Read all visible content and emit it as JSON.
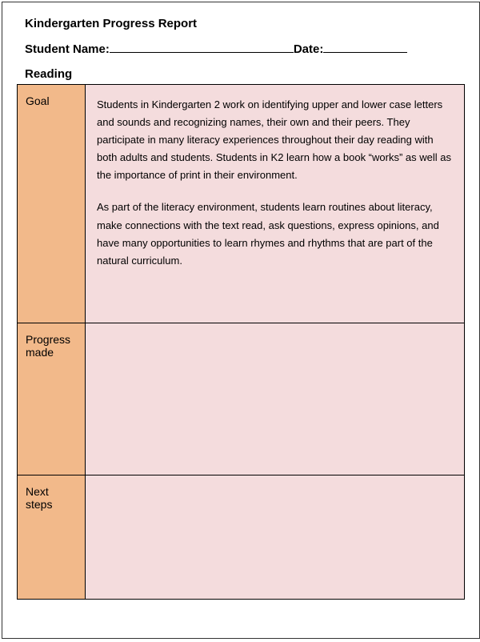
{
  "title": "Kindergarten Progress Report",
  "studentNameLabel": "Student Name:",
  "dateLabel": "Date:",
  "sectionHeading": "Reading",
  "rows": {
    "goal": {
      "label": "Goal",
      "para1": "Students in Kindergarten 2 work on identifying upper and lower case letters and sounds and recognizing names, their own and their peers. They participate in many literacy experiences throughout their day reading with both adults and students.  Students in K2 learn how a book “works” as well as the importance of print in their environment.",
      "para2": "As part of the literacy environment, students learn routines about literacy, make connections with the text read, ask questions, express opinions, and have many opportunities to learn rhymes and rhythms that are part of the natural curriculum."
    },
    "progress": {
      "label": "Progress made",
      "content": ""
    },
    "next": {
      "label": "Next steps",
      "content": ""
    }
  },
  "colors": {
    "labelCellBg": "#f2b98a",
    "contentCellBg": "#f4dcdd",
    "border": "#000000",
    "text": "#000000",
    "pageBg": "#ffffff"
  },
  "typography": {
    "titleFontSize": 15,
    "labelFontSize": 14,
    "bodyFontSize": 13,
    "fontFamily": "Arial"
  }
}
